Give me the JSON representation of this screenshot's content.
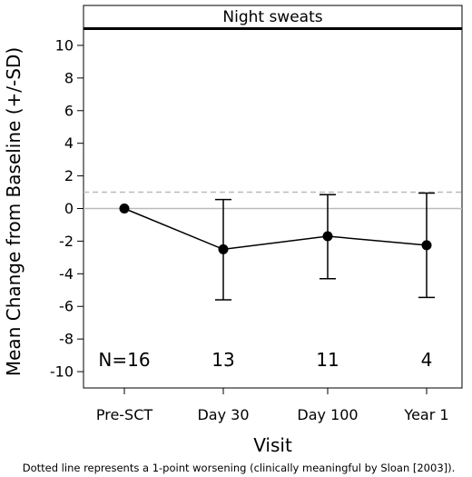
{
  "chart_data": {
    "type": "line",
    "title": "Night sweats",
    "xlabel": "Visit",
    "ylabel": "Mean Change from Baseline (+/-SD)",
    "categories": [
      "Pre-SCT",
      "Day 30",
      "Day 100",
      "Year 1"
    ],
    "series": [
      {
        "values": [
          0,
          -2.5,
          -1.7,
          -2.25
        ],
        "error_upper": [
          0,
          0.55,
          0.85,
          0.95
        ],
        "error_lower": [
          0,
          -5.6,
          -4.3,
          -5.45
        ]
      }
    ],
    "counts": [
      "N=16",
      "13",
      "11",
      "4"
    ],
    "ylim": [
      -11,
      11
    ],
    "yticks": [
      10,
      8,
      6,
      4,
      2,
      0,
      -2,
      -4,
      -6,
      -8,
      -10
    ],
    "yticks_labels": [
      "10",
      "8",
      "6",
      "4",
      "2",
      "0",
      "-2",
      "-4",
      "-6",
      "-8",
      "-10"
    ],
    "reference_lines": [
      {
        "y": 0,
        "style": "solid",
        "color": "#bbbbbb"
      },
      {
        "y": 1,
        "style": "dashed",
        "color": "#bbbbbb"
      }
    ],
    "footnote": "Dotted line represents a 1-point worsening (clinically meaningful by Sloan [2003]).",
    "colors": {
      "line": "#000000",
      "marker": "#000000",
      "reference": "#bbbbbb"
    }
  }
}
